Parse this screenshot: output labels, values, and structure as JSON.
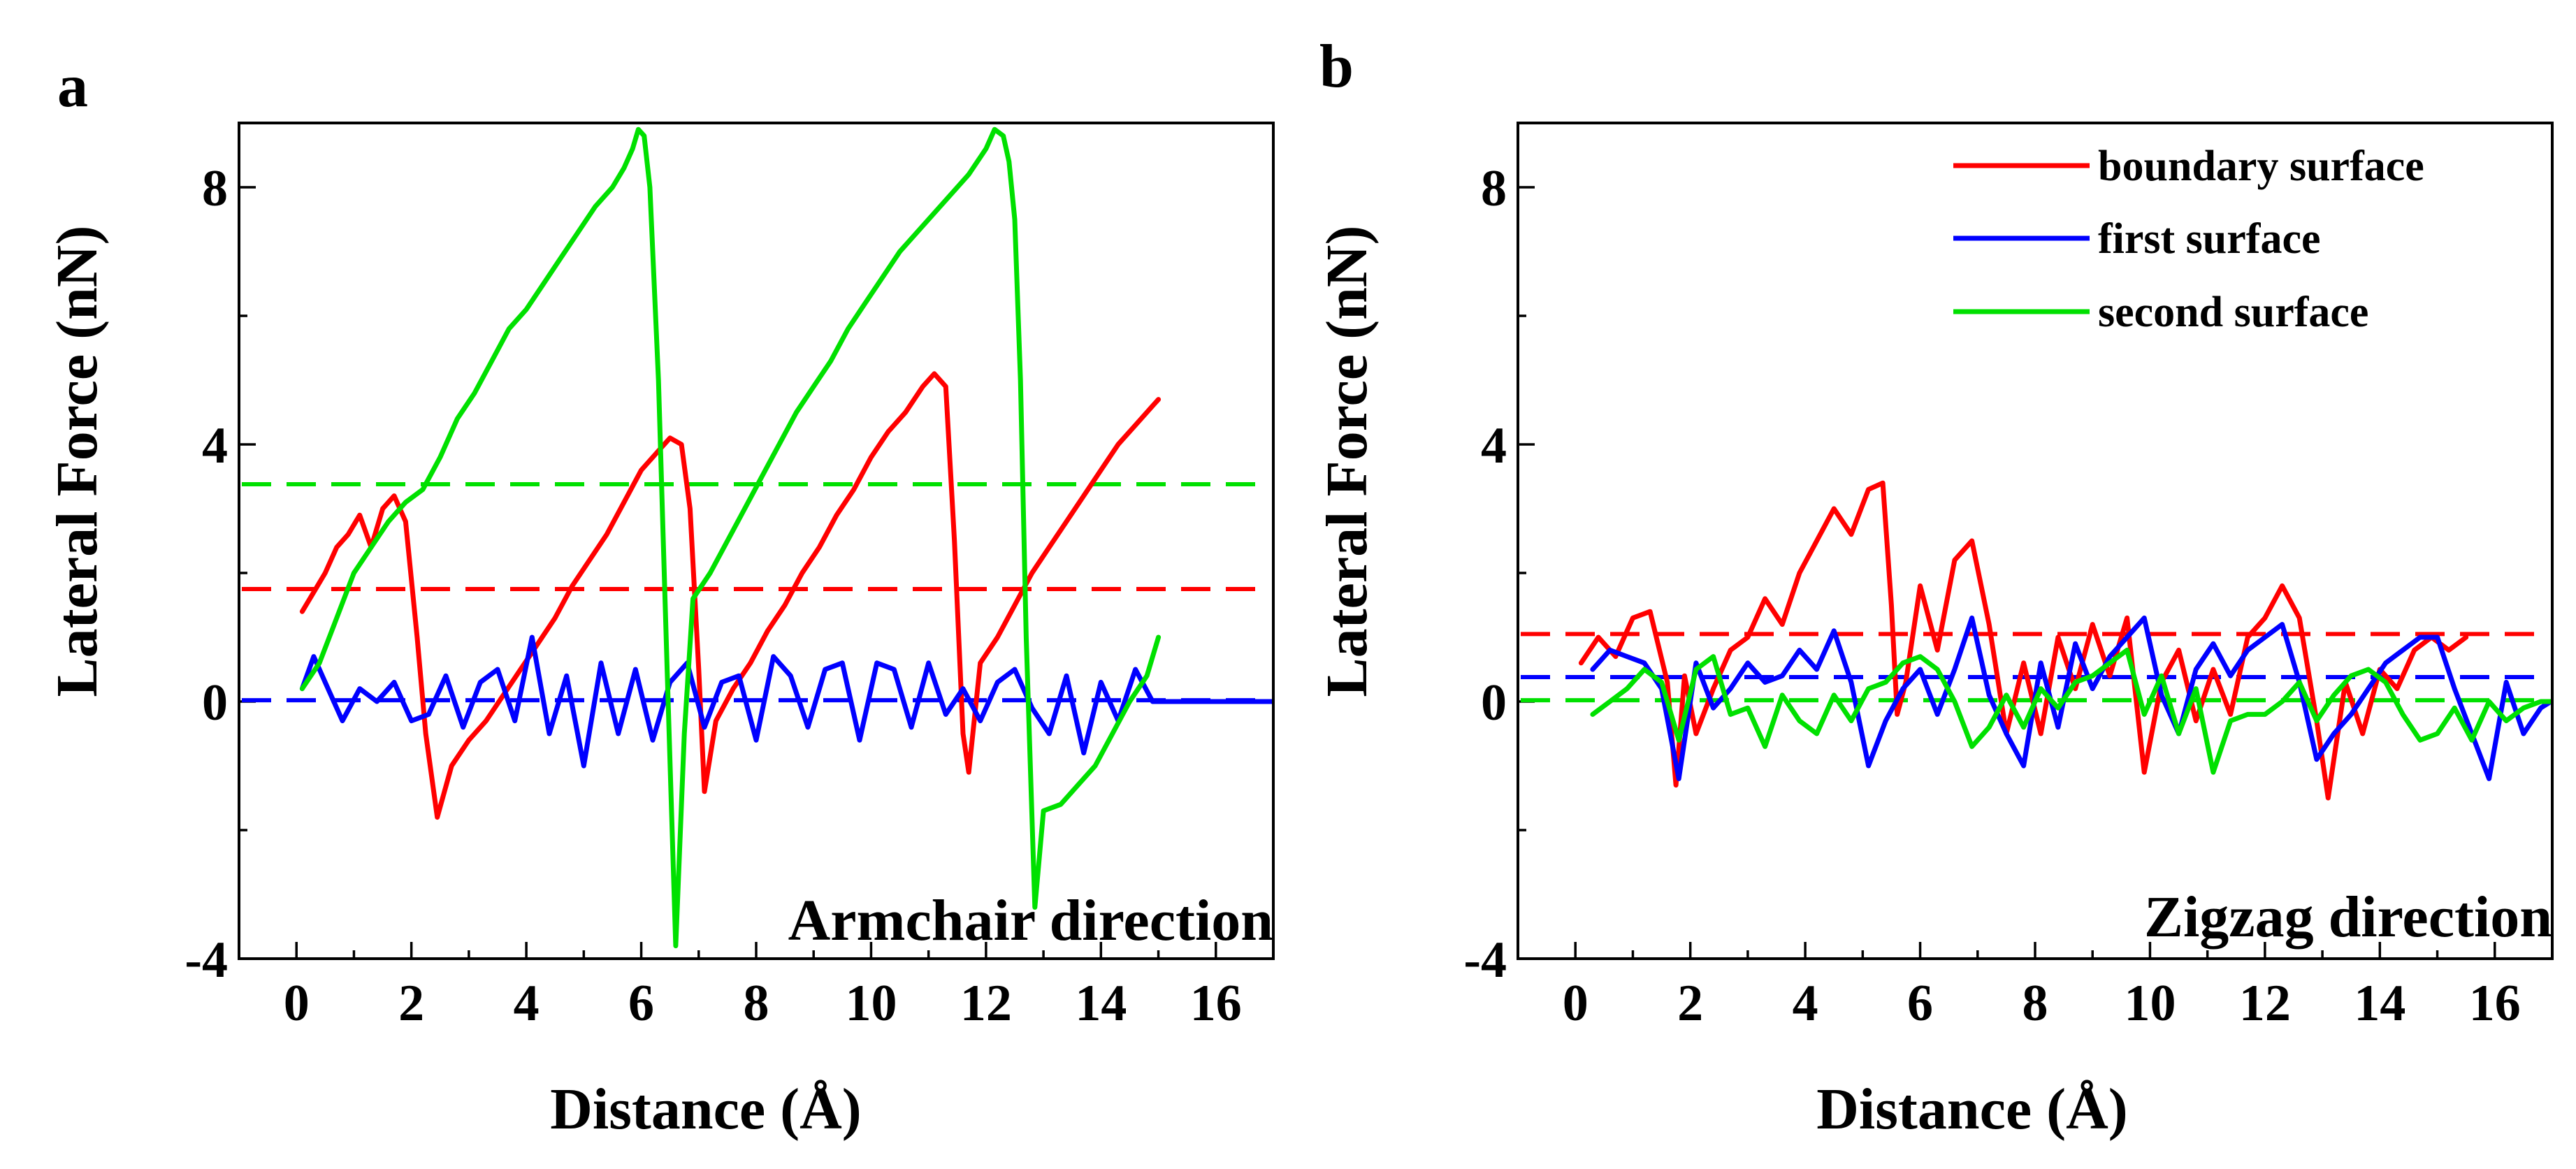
{
  "colors": {
    "boundary": "#ff0000",
    "first": "#0000ff",
    "second": "#00e000"
  },
  "chart_data": [
    {
      "panel": "a",
      "type": "line",
      "xlabel": "Distance (Å)",
      "ylabel": "Lateral Force (nN)",
      "annotation": "Armchair direction",
      "xlim": [
        -1,
        17
      ],
      "ylim": [
        -4,
        9
      ],
      "xticks": [
        0,
        2,
        4,
        6,
        8,
        10,
        12,
        14,
        16
      ],
      "yticks": [
        -4,
        0,
        4,
        8
      ],
      "grid": false,
      "legend": null,
      "series": [
        {
          "name": "boundary surface",
          "color": "#ff0000",
          "x": [
            0.1,
            0.3,
            0.5,
            0.7,
            0.9,
            1.1,
            1.3,
            1.5,
            1.7,
            1.9,
            2.1,
            2.25,
            2.45,
            2.7,
            3.0,
            3.3,
            3.6,
            3.9,
            4.2,
            4.5,
            4.8,
            5.1,
            5.4,
            5.7,
            6.0,
            6.3,
            6.5,
            6.7,
            6.85,
            7.0,
            7.1,
            7.3,
            7.6,
            7.9,
            8.2,
            8.5,
            8.8,
            9.1,
            9.4,
            9.7,
            10.0,
            10.3,
            10.6,
            10.9,
            11.1,
            11.3,
            11.45,
            11.6,
            11.7,
            11.9,
            12.2,
            12.5,
            12.8,
            13.1,
            13.4,
            13.7,
            14.0,
            14.3,
            14.6,
            14.9,
            15.0
          ],
          "y": [
            1.4,
            1.7,
            2.0,
            2.4,
            2.6,
            2.9,
            2.4,
            3.0,
            3.2,
            2.8,
            1.0,
            -0.5,
            -1.8,
            -1.0,
            -0.6,
            -0.3,
            0.1,
            0.5,
            0.9,
            1.3,
            1.8,
            2.2,
            2.6,
            3.1,
            3.6,
            3.9,
            4.1,
            4.0,
            3.0,
            0.5,
            -1.4,
            -0.3,
            0.2,
            0.6,
            1.1,
            1.5,
            2.0,
            2.4,
            2.9,
            3.3,
            3.8,
            4.2,
            4.5,
            4.9,
            5.1,
            4.9,
            2.5,
            -0.5,
            -1.1,
            0.6,
            1.0,
            1.5,
            2.0,
            2.4,
            2.8,
            3.2,
            3.6,
            4.0,
            4.3,
            4.6,
            4.7
          ]
        },
        {
          "name": "first surface",
          "color": "#0000ff",
          "x": [
            0.1,
            0.3,
            0.5,
            0.8,
            1.1,
            1.4,
            1.7,
            2.0,
            2.3,
            2.6,
            2.9,
            3.2,
            3.5,
            3.8,
            4.1,
            4.4,
            4.7,
            5.0,
            5.3,
            5.6,
            5.9,
            6.2,
            6.5,
            6.8,
            7.1,
            7.4,
            7.7,
            8.0,
            8.3,
            8.6,
            8.9,
            9.2,
            9.5,
            9.8,
            10.1,
            10.4,
            10.7,
            11.0,
            11.3,
            11.6,
            11.9,
            12.2,
            12.5,
            12.8,
            13.1,
            13.4,
            13.7,
            14.0,
            14.3,
            14.6,
            14.9,
            15.0,
            16.0,
            17.0
          ],
          "y": [
            0.2,
            0.7,
            0.3,
            -0.3,
            0.2,
            0.0,
            0.3,
            -0.3,
            -0.2,
            0.4,
            -0.4,
            0.3,
            0.5,
            -0.3,
            1.0,
            -0.5,
            0.4,
            -1.0,
            0.6,
            -0.5,
            0.5,
            -0.6,
            0.3,
            0.6,
            -0.4,
            0.3,
            0.4,
            -0.6,
            0.7,
            0.4,
            -0.4,
            0.5,
            0.6,
            -0.6,
            0.6,
            0.5,
            -0.4,
            0.6,
            -0.2,
            0.2,
            -0.3,
            0.3,
            0.5,
            -0.1,
            -0.5,
            0.4,
            -0.8,
            0.3,
            -0.3,
            0.5,
            0.0,
            0.0,
            0.0,
            0.0
          ]
        },
        {
          "name": "second surface",
          "color": "#00e000",
          "x": [
            0.1,
            0.4,
            0.7,
            1.0,
            1.3,
            1.6,
            1.9,
            2.2,
            2.5,
            2.8,
            3.1,
            3.4,
            3.7,
            4.0,
            4.3,
            4.6,
            4.9,
            5.2,
            5.5,
            5.7,
            5.85,
            5.95,
            6.05,
            6.15,
            6.3,
            6.45,
            6.6,
            6.75,
            6.9,
            7.2,
            7.5,
            7.8,
            8.1,
            8.4,
            8.7,
            9.0,
            9.3,
            9.6,
            9.9,
            10.2,
            10.5,
            10.8,
            11.1,
            11.4,
            11.7,
            12.0,
            12.15,
            12.3,
            12.4,
            12.5,
            12.6,
            12.7,
            12.85,
            13.0,
            13.3,
            13.6,
            13.9,
            14.2,
            14.5,
            14.8,
            15.0
          ],
          "y": [
            0.2,
            0.6,
            1.3,
            2.0,
            2.4,
            2.8,
            3.1,
            3.3,
            3.8,
            4.4,
            4.8,
            5.3,
            5.8,
            6.1,
            6.5,
            6.9,
            7.3,
            7.7,
            8.0,
            8.3,
            8.6,
            8.9,
            8.8,
            8.0,
            5.0,
            0.5,
            -3.8,
            -0.5,
            1.6,
            2.0,
            2.5,
            3.0,
            3.5,
            4.0,
            4.5,
            4.9,
            5.3,
            5.8,
            6.2,
            6.6,
            7.0,
            7.3,
            7.6,
            7.9,
            8.2,
            8.6,
            8.9,
            8.8,
            8.4,
            7.5,
            5.0,
            1.0,
            -3.2,
            -1.7,
            -1.6,
            -1.3,
            -1.0,
            -0.5,
            0.0,
            0.4,
            1.0
          ]
        }
      ],
      "mean_lines": [
        {
          "name": "boundary surface",
          "y": 1.75,
          "color": "#ff0000"
        },
        {
          "name": "first surface",
          "y": 0.02,
          "color": "#0000ff"
        },
        {
          "name": "second surface",
          "y": 3.38,
          "color": "#00e000"
        }
      ]
    },
    {
      "panel": "b",
      "type": "line",
      "xlabel": "Distance (Å)",
      "ylabel": "Lateral Force (nN)",
      "annotation": "Zigzag direction",
      "xlim": [
        -1,
        17
      ],
      "ylim": [
        -4,
        9
      ],
      "xticks": [
        0,
        2,
        4,
        6,
        8,
        10,
        12,
        14,
        16
      ],
      "yticks": [
        -4,
        0,
        4,
        8
      ],
      "grid": false,
      "legend": "top-right",
      "series": [
        {
          "name": "boundary surface",
          "color": "#ff0000",
          "x": [
            0.1,
            0.4,
            0.7,
            1.0,
            1.3,
            1.6,
            1.75,
            1.9,
            2.1,
            2.4,
            2.7,
            3.0,
            3.3,
            3.6,
            3.9,
            4.2,
            4.5,
            4.8,
            5.1,
            5.35,
            5.5,
            5.6,
            5.75,
            6.0,
            6.3,
            6.6,
            6.9,
            7.2,
            7.5,
            7.8,
            8.1,
            8.4,
            8.7,
            9.0,
            9.3,
            9.6,
            9.9,
            10.2,
            10.5,
            10.8,
            11.1,
            11.4,
            11.7,
            12.0,
            12.3,
            12.6,
            12.9,
            13.1,
            13.4,
            13.7,
            14.0,
            14.3,
            14.6,
            14.9,
            15.2,
            15.5
          ],
          "y": [
            0.6,
            1.0,
            0.7,
            1.3,
            1.4,
            0.3,
            -1.3,
            0.4,
            -0.5,
            0.2,
            0.8,
            1.0,
            1.6,
            1.2,
            2.0,
            2.5,
            3.0,
            2.6,
            3.3,
            3.4,
            1.5,
            -0.2,
            0.3,
            1.8,
            0.8,
            2.2,
            2.5,
            1.2,
            -0.5,
            0.6,
            -0.5,
            1.0,
            0.2,
            1.2,
            0.4,
            1.3,
            -1.1,
            0.3,
            0.8,
            -0.3,
            0.5,
            -0.2,
            1.0,
            1.3,
            1.8,
            1.3,
            -0.3,
            -1.5,
            0.3,
            -0.5,
            0.5,
            0.2,
            0.8,
            1.0,
            0.8,
            1.0
          ]
        },
        {
          "name": "first surface",
          "color": "#0000ff",
          "x": [
            0.3,
            0.6,
            0.9,
            1.2,
            1.5,
            1.8,
            2.1,
            2.4,
            2.7,
            3.0,
            3.3,
            3.6,
            3.9,
            4.2,
            4.5,
            4.8,
            5.1,
            5.4,
            5.7,
            6.0,
            6.3,
            6.6,
            6.9,
            7.2,
            7.5,
            7.8,
            8.1,
            8.4,
            8.7,
            9.0,
            9.3,
            9.6,
            9.9,
            10.2,
            10.5,
            10.8,
            11.1,
            11.4,
            11.7,
            12.0,
            12.3,
            12.6,
            12.9,
            13.2,
            13.5,
            13.8,
            14.1,
            14.4,
            14.7,
            15.0,
            15.3,
            15.6,
            15.9,
            16.2,
            16.5,
            16.8,
            17.0
          ],
          "y": [
            0.5,
            0.8,
            0.7,
            0.6,
            0.2,
            -1.2,
            0.6,
            -0.1,
            0.2,
            0.6,
            0.3,
            0.4,
            0.8,
            0.5,
            1.1,
            0.3,
            -1.0,
            -0.3,
            0.2,
            0.5,
            -0.2,
            0.5,
            1.3,
            0.1,
            -0.5,
            -1.0,
            0.6,
            -0.4,
            0.9,
            0.2,
            0.7,
            1.0,
            1.3,
            0.1,
            -0.5,
            0.5,
            0.9,
            0.4,
            0.8,
            1.0,
            1.2,
            0.3,
            -0.9,
            -0.5,
            -0.2,
            0.2,
            0.6,
            0.8,
            1.0,
            1.0,
            0.2,
            -0.5,
            -1.2,
            0.3,
            -0.5,
            -0.1,
            0.0
          ]
        },
        {
          "name": "second surface",
          "color": "#00e000",
          "x": [
            0.3,
            0.6,
            0.9,
            1.2,
            1.5,
            1.8,
            2.1,
            2.4,
            2.7,
            3.0,
            3.3,
            3.6,
            3.9,
            4.2,
            4.5,
            4.8,
            5.1,
            5.4,
            5.7,
            6.0,
            6.3,
            6.6,
            6.9,
            7.2,
            7.5,
            7.8,
            8.1,
            8.4,
            8.7,
            9.0,
            9.3,
            9.6,
            9.9,
            10.2,
            10.5,
            10.8,
            11.1,
            11.4,
            11.7,
            12.0,
            12.3,
            12.6,
            12.9,
            13.2,
            13.5,
            13.8,
            14.1,
            14.4,
            14.7,
            15.0,
            15.3,
            15.6,
            15.9,
            16.2,
            16.5,
            16.8,
            17.0
          ],
          "y": [
            -0.2,
            0.0,
            0.2,
            0.5,
            0.3,
            -0.6,
            0.5,
            0.7,
            -0.2,
            -0.1,
            -0.7,
            0.1,
            -0.3,
            -0.5,
            0.1,
            -0.3,
            0.2,
            0.3,
            0.6,
            0.7,
            0.5,
            0.0,
            -0.7,
            -0.4,
            0.1,
            -0.4,
            0.2,
            -0.1,
            0.3,
            0.4,
            0.6,
            0.8,
            -0.2,
            0.4,
            -0.5,
            0.2,
            -1.1,
            -0.3,
            -0.2,
            -0.2,
            0.0,
            0.3,
            -0.3,
            0.1,
            0.4,
            0.5,
            0.3,
            -0.2,
            -0.6,
            -0.5,
            -0.1,
            -0.6,
            0.0,
            -0.3,
            -0.1,
            0.0,
            0.0
          ]
        }
      ],
      "mean_lines": [
        {
          "name": "boundary surface",
          "y": 1.05,
          "color": "#ff0000"
        },
        {
          "name": "first surface",
          "y": 0.38,
          "color": "#0000ff"
        },
        {
          "name": "second surface",
          "y": 0.02,
          "color": "#00e000"
        }
      ]
    }
  ]
}
